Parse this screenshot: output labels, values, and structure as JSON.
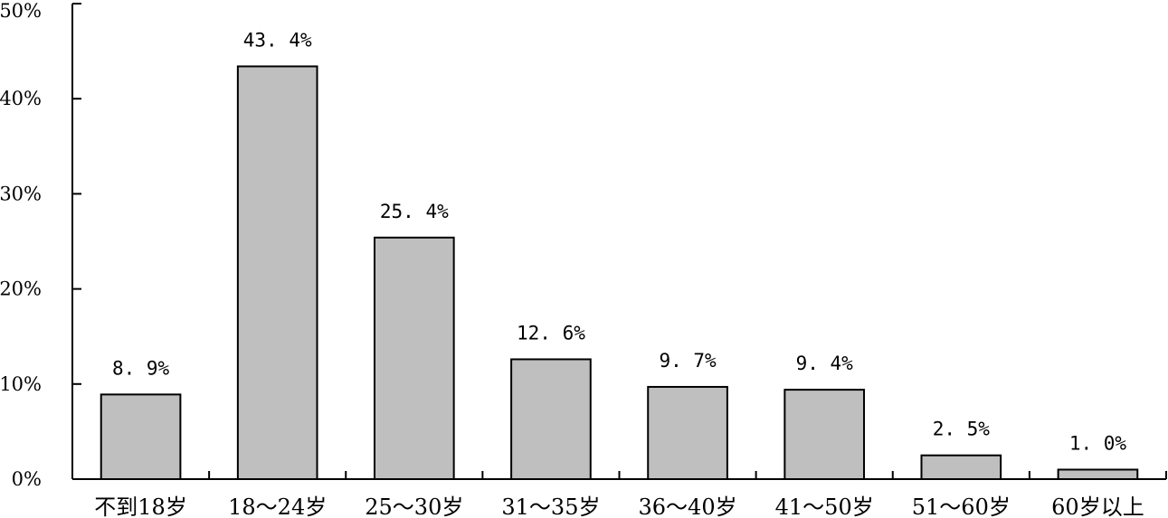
{
  "chart_data": {
    "type": "bar",
    "categories": [
      "不到18岁",
      "18～24岁",
      "25～30岁",
      "31～35岁",
      "36～40岁",
      "41～50岁",
      "51～60岁",
      "60岁以上"
    ],
    "values": [
      8.9,
      43.4,
      25.4,
      12.6,
      9.7,
      9.4,
      2.5,
      1.0
    ],
    "data_labels": [
      "8. 9%",
      "43. 4%",
      "25. 4%",
      "12. 6%",
      "9. 7%",
      "9. 4%",
      "2. 5%",
      "1. 0%"
    ],
    "yticks": [
      0,
      10,
      20,
      30,
      40,
      50
    ],
    "ytick_labels": [
      "0%",
      "10%",
      "20%",
      "30%",
      "40%",
      "50%"
    ],
    "ylim": [
      0,
      50
    ],
    "bar_color": "#c0bfc0",
    "grid": false,
    "legend": "none"
  }
}
